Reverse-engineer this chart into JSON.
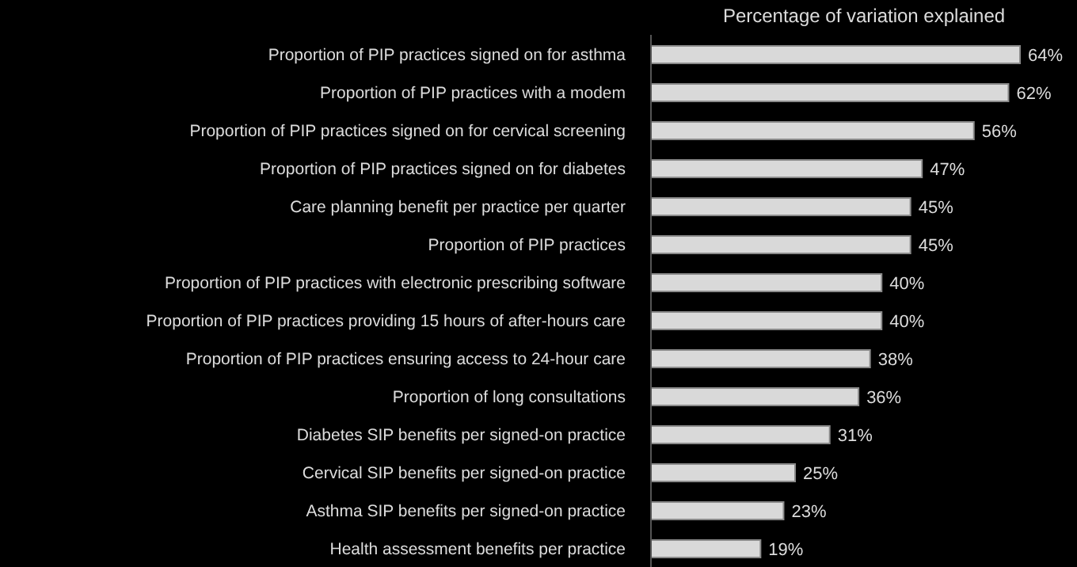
{
  "chart_data": {
    "type": "bar",
    "orientation": "horizontal",
    "title": "Percentage of variation explained",
    "categories": [
      "Proportion of PIP practices signed on for asthma",
      "Proportion of PIP practices with a modem",
      "Proportion of PIP practices signed on for cervical screening",
      "Proportion of PIP practices signed on for diabetes",
      "Care planning benefit per practice per quarter",
      "Proportion of PIP practices",
      "Proportion of PIP practices with electronic prescribing software",
      "Proportion of PIP practices providing 15 hours of after-hours care",
      "Proportion of PIP practices ensuring access to 24-hour care",
      "Proportion of long consultations",
      "Diabetes SIP benefits per signed-on practice",
      "Cervical SIP benefits per signed-on practice",
      "Asthma SIP benefits per signed-on practice",
      "Health assessment benefits per practice"
    ],
    "values": [
      64,
      62,
      56,
      47,
      45,
      45,
      40,
      40,
      38,
      36,
      31,
      25,
      23,
      19
    ],
    "value_labels": [
      "64%",
      "62%",
      "56%",
      "47%",
      "45%",
      "45%",
      "40%",
      "40%",
      "38%",
      "36%",
      "31%",
      "25%",
      "23%",
      "19%"
    ],
    "color": "#d9d9d9"
  }
}
